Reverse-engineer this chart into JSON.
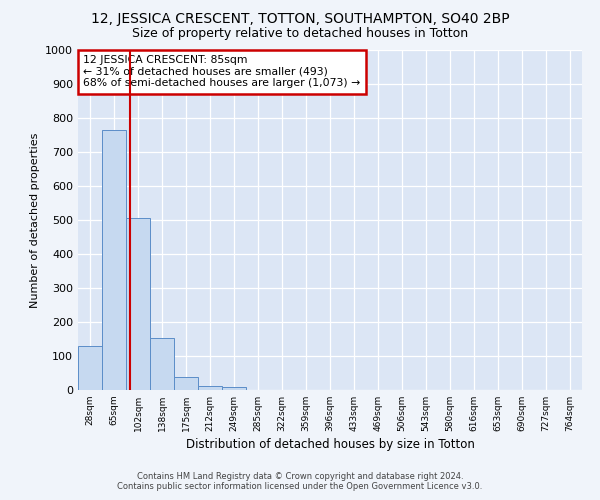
{
  "title": "12, JESSICA CRESCENT, TOTTON, SOUTHAMPTON, SO40 2BP",
  "subtitle": "Size of property relative to detached houses in Totton",
  "xlabel": "Distribution of detached houses by size in Totton",
  "ylabel": "Number of detached properties",
  "bar_labels": [
    "28sqm",
    "65sqm",
    "102sqm",
    "138sqm",
    "175sqm",
    "212sqm",
    "249sqm",
    "285sqm",
    "322sqm",
    "359sqm",
    "396sqm",
    "433sqm",
    "469sqm",
    "506sqm",
    "543sqm",
    "580sqm",
    "616sqm",
    "653sqm",
    "690sqm",
    "727sqm",
    "764sqm"
  ],
  "bar_values": [
    128,
    765,
    507,
    152,
    38,
    12,
    9,
    0,
    0,
    0,
    0,
    0,
    0,
    0,
    0,
    0,
    0,
    0,
    0,
    0,
    0
  ],
  "bar_color": "#c6d9f0",
  "bar_edge_color": "#5b8dc8",
  "property_line_x": 1.65,
  "annotation_text": "12 JESSICA CRESCENT: 85sqm\n← 31% of detached houses are smaller (493)\n68% of semi-detached houses are larger (1,073) →",
  "annotation_box_color": "#ffffff",
  "annotation_box_edge": "#cc0000",
  "property_line_color": "#cc0000",
  "ylim": [
    0,
    1000
  ],
  "yticks": [
    0,
    100,
    200,
    300,
    400,
    500,
    600,
    700,
    800,
    900,
    1000
  ],
  "footer": "Contains HM Land Registry data © Crown copyright and database right 2024.\nContains public sector information licensed under the Open Government Licence v3.0.",
  "fig_background_color": "#f0f4fa",
  "plot_background_color": "#dce6f5",
  "grid_color": "#ffffff",
  "title_fontsize": 10,
  "subtitle_fontsize": 9
}
